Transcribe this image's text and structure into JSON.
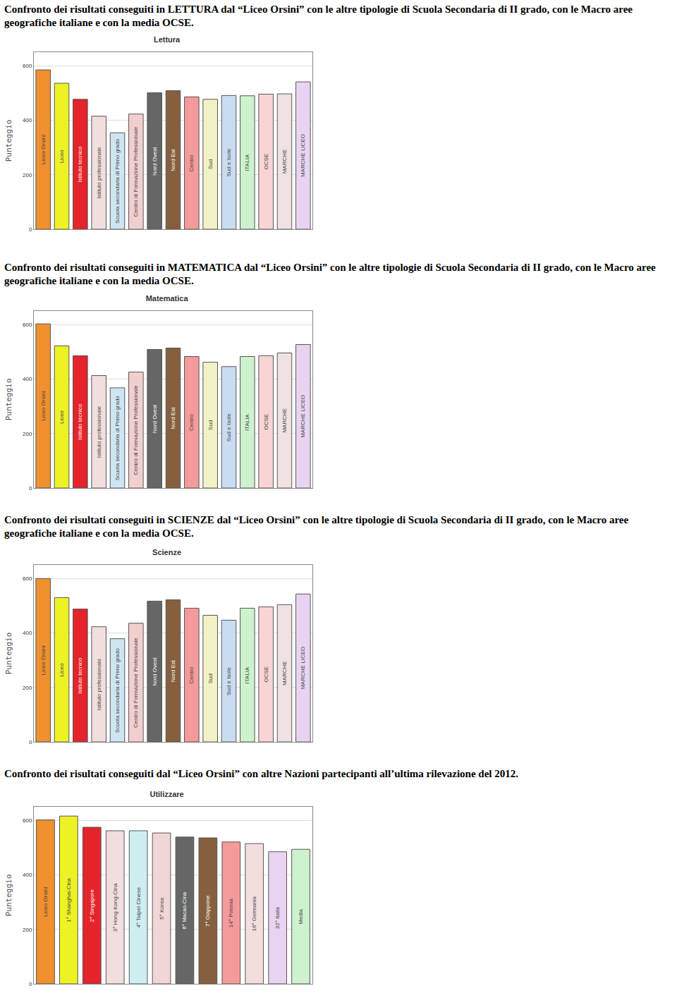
{
  "headings": [
    "Confronto dei risultati conseguiti in LETTURA dal “Liceo Orsini” con le altre tipologie di Scuola Secondaria di II grado, con le Macro aree geografiche italiane e con la media OCSE.",
    "Confronto dei risultati conseguiti in MATEMATICA dal “Liceo Orsini” con le altre tipologie di Scuola Secondaria di II grado, con le Macro aree geografiche italiane e con la media OCSE.",
    "Confronto dei risultati conseguiti in SCIENZE dal “Liceo Orsini” con le altre tipologie di Scuola Secondaria di II grado, con le Macro aree geografiche italiane e con la media OCSE.",
    "Confronto dei risultati conseguiti dal “Liceo Orsini” con altre Nazioni partecipanti all’ultima rilevazione del 2012."
  ],
  "chart_data": [
    {
      "type": "bar",
      "title": "Lettura",
      "y_label": "Punteggio",
      "categories": [
        "Liceo Orsini",
        "Liceo",
        "Istituto tecnico",
        "Istituto professionale",
        "Scuola secondaria di Primo grado",
        "Centro di Formazione Professionale",
        "Nord Ovest",
        "Nord Est",
        "Centro",
        "Sud",
        "Sud e Isole",
        "ITALIA",
        "OCSE",
        "MARCHE",
        "MARCHE LICEO"
      ],
      "values": [
        585,
        536,
        477,
        415,
        354,
        423,
        501,
        509,
        486,
        477,
        491,
        490,
        496,
        497,
        541
      ],
      "colors": [
        "#f0902e",
        "#eef224",
        "#e4242a",
        "#f2dede",
        "#cfe6f2",
        "#f2cfcf",
        "#666666",
        "#86603e",
        "#f49a9a",
        "#f2f2c6",
        "#c9dcf2",
        "#cdf2cd",
        "#f8d4d4",
        "#f0e2e2",
        "#e8d4f2"
      ],
      "ylim": [
        0,
        650
      ],
      "yticks": [
        0,
        200,
        400,
        600
      ],
      "grid": true,
      "tick_labels": "y"
    },
    {
      "type": "bar",
      "title": "Matematica",
      "y_label": "Punteggio",
      "categories": [
        "Liceo Orsini",
        "Liceo",
        "Istituto tecnico",
        "Istituto professionale",
        "Scuola secondaria di Primo grado",
        "Centro di Formazione Professionale",
        "Nord Ovest",
        "Nord Est",
        "Centro",
        "Sud",
        "Sud e Isole",
        "ITALIA",
        "OCSE",
        "MARCHE",
        "MARCHE LICEO"
      ],
      "values": [
        603,
        522,
        486,
        413,
        368,
        426,
        509,
        514,
        483,
        462,
        446,
        483,
        486,
        496,
        527
      ],
      "colors": [
        "#f0902e",
        "#eef224",
        "#e4242a",
        "#f2dede",
        "#cfe6f2",
        "#f2cfcf",
        "#666666",
        "#86603e",
        "#f49a9a",
        "#f2f2c6",
        "#c9dcf2",
        "#cdf2cd",
        "#f8d4d4",
        "#f0e2e2",
        "#e8d4f2"
      ],
      "ylim": [
        0,
        650
      ],
      "yticks": [
        0,
        200,
        400,
        600
      ],
      "grid": true,
      "tick_labels": "y"
    },
    {
      "type": "bar",
      "title": "Scienze",
      "y_label": "Punteggio",
      "categories": [
        "Liceo Orsini",
        "Liceo",
        "Istituto tecnico",
        "Istituto professionale",
        "Scuola secondaria di Primo grado",
        "Centro di Formazione Professionale",
        "Nord Ovest",
        "Nord Est",
        "Centro",
        "Sud",
        "Sud e Isole",
        "ITALIA",
        "OCSE",
        "MARCHE",
        "MARCHE LICEO"
      ],
      "values": [
        600,
        530,
        488,
        423,
        379,
        436,
        517,
        522,
        491,
        465,
        447,
        491,
        496,
        504,
        543
      ],
      "colors": [
        "#f0902e",
        "#eef224",
        "#e4242a",
        "#f2dede",
        "#cfe6f2",
        "#f2cfcf",
        "#666666",
        "#86603e",
        "#f49a9a",
        "#f2f2c6",
        "#c9dcf2",
        "#cdf2cd",
        "#f8d4d4",
        "#f0e2e2",
        "#e8d4f2"
      ],
      "ylim": [
        0,
        650
      ],
      "yticks": [
        0,
        200,
        400,
        600
      ],
      "grid": true,
      "tick_labels": "y"
    },
    {
      "type": "bar",
      "title": "Utilizzare",
      "y_label": "Punteggio",
      "categories": [
        "Liceo Orsini",
        "1° Shanghai-Cina",
        "2° Singapore",
        "3° Hong Kong-Cina",
        "4° Taipei Cinese",
        "5° Korea",
        "6° Macao-Cina",
        "7° Giappone",
        "14° Polonia",
        "16° Germania",
        "32° Italia",
        "Media"
      ],
      "values": [
        602,
        616,
        575,
        562,
        562,
        554,
        539,
        536,
        521,
        515,
        485,
        494
      ],
      "colors": [
        "#f0902e",
        "#eef224",
        "#e4242a",
        "#f2dede",
        "#cfeef2",
        "#f2d6d6",
        "#666666",
        "#86603e",
        "#f49a9a",
        "#f2dede",
        "#e8d4f2",
        "#cdf2cd"
      ],
      "ylim": [
        0,
        650
      ],
      "yticks": [
        0,
        200,
        400,
        600
      ],
      "grid": true,
      "tick_labels": "y"
    }
  ]
}
